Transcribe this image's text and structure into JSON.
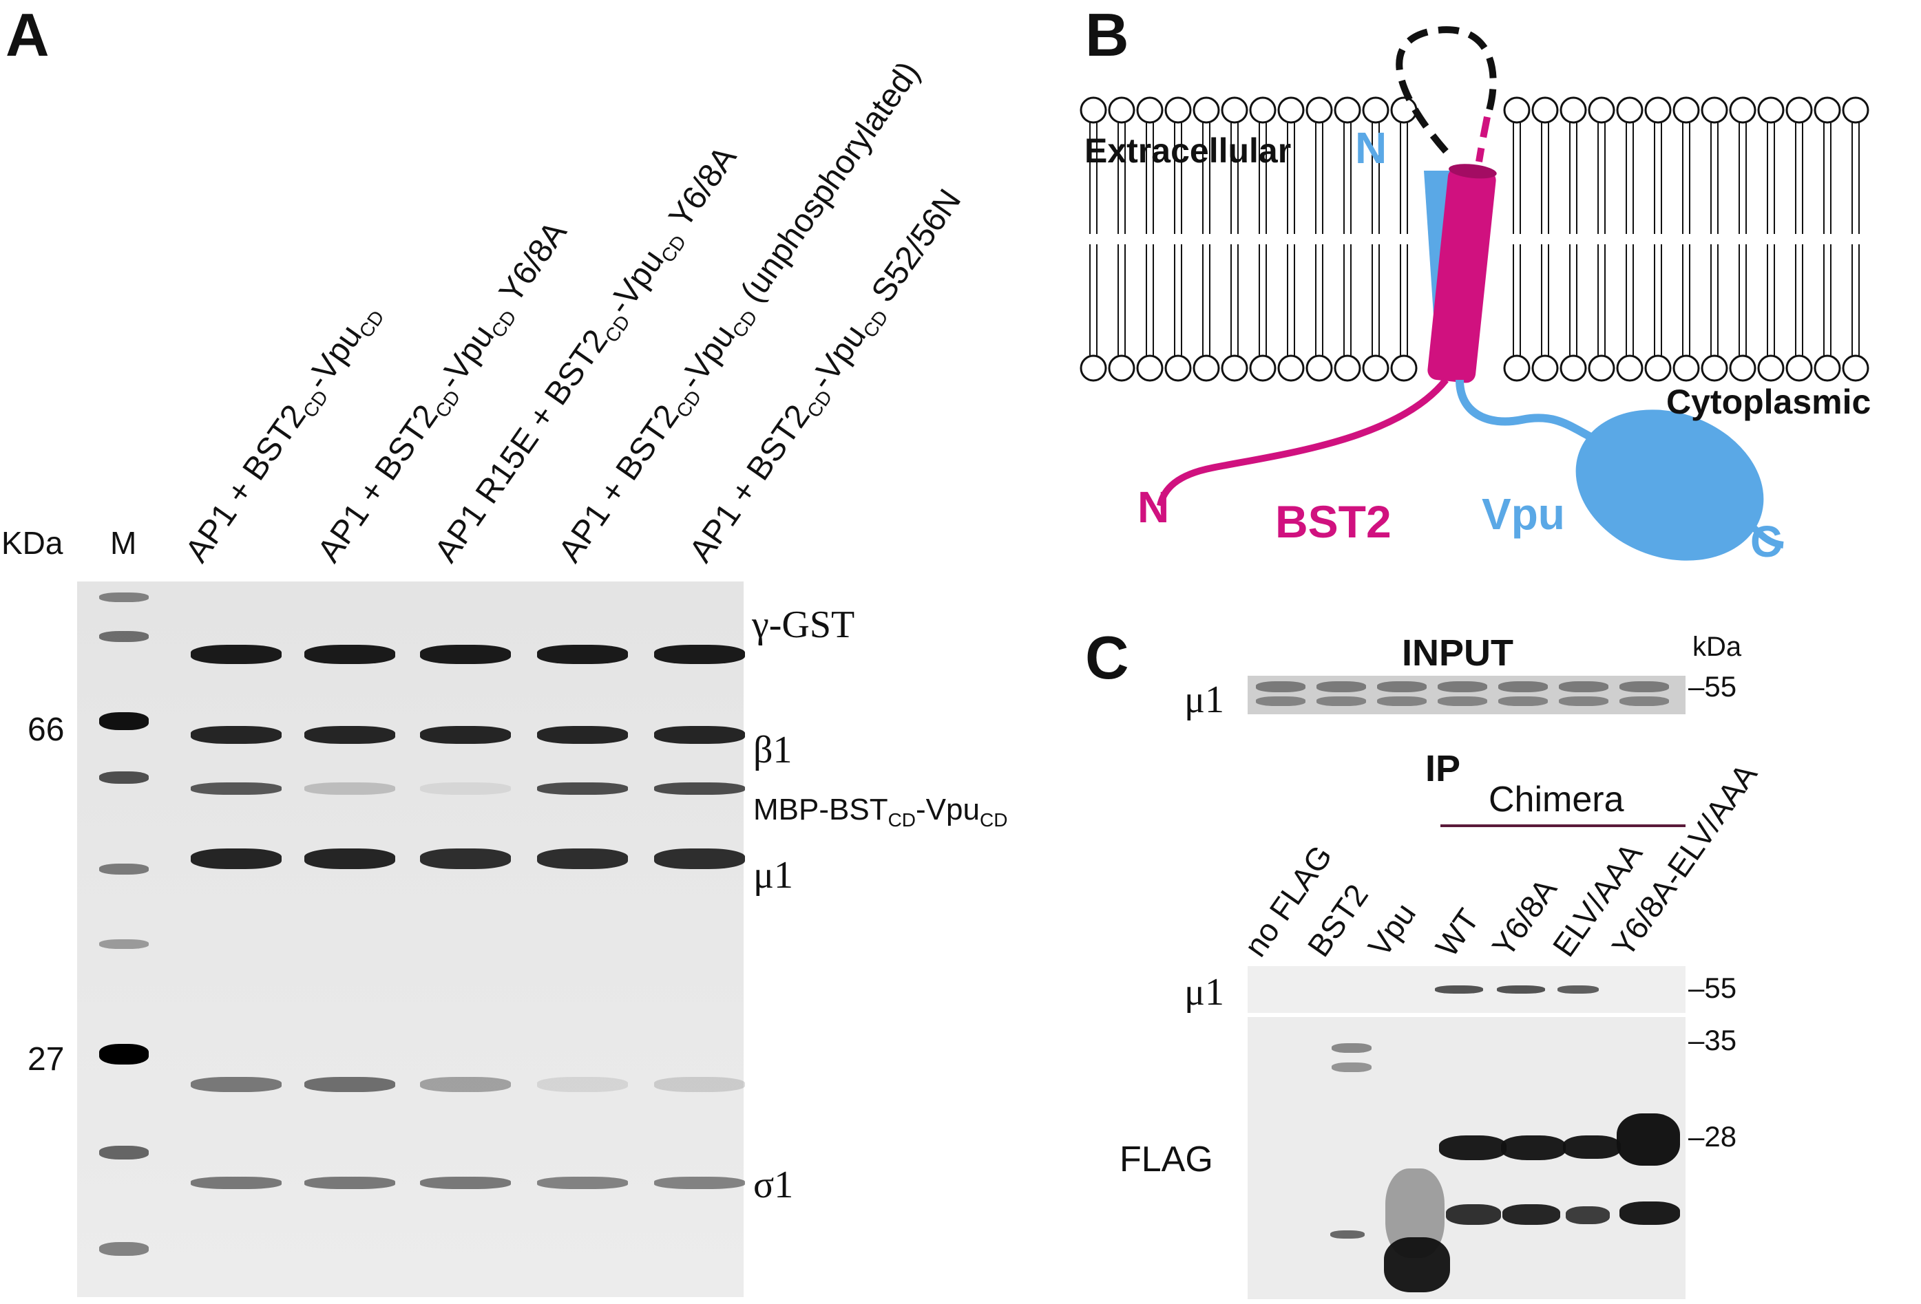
{
  "panels": {
    "a": "A",
    "b": "B",
    "c": "C"
  },
  "panelA": {
    "kda_label": "KDa",
    "marker_label": "M",
    "lanes": [
      {
        "main": "AP1 + BST2",
        "sub1": "CD",
        "mid": "-Vpu",
        "sub2": "CD",
        "suffix": ""
      },
      {
        "main": "AP1 + BST2",
        "sub1": "CD",
        "mid": "-Vpu",
        "sub2": "CD",
        "suffix": " Y6/8A"
      },
      {
        "main": "AP1 R15E + BST2",
        "sub1": "CD",
        "mid": "-Vpu",
        "sub2": "CD",
        "suffix": " Y6/8A"
      },
      {
        "main": "AP1 + BST2",
        "sub1": "CD",
        "mid": "-Vpu",
        "sub2": "CD",
        "suffix": " (unphosphorylated)"
      },
      {
        "main": "AP1 + BST2",
        "sub1": "CD",
        "mid": "-Vpu",
        "sub2": "CD",
        "suffix": " S52/56N"
      }
    ],
    "mw_markers": [
      "66",
      "27"
    ],
    "band_labels": {
      "gamma": "γ-GST",
      "beta": "β1",
      "mbp_main": "MBP-BST",
      "mbp_sub1": "CD",
      "mbp_mid": "-Vpu",
      "mbp_sub2": "CD",
      "mu": "μ1",
      "sigma": "σ1"
    }
  },
  "panelB": {
    "extracellular": "Extracellular",
    "cytoplasmic": "Cytoplasmic",
    "n_vpu": "N",
    "n_bst2": "N",
    "bst2": "BST2",
    "vpu": "Vpu",
    "c_vpu": "C",
    "colors": {
      "bst2": "#d0117f",
      "vpu": "#5aa8e6"
    }
  },
  "panelC": {
    "input_title": "INPUT",
    "kda_unit": "kDa",
    "input_row_label": "μ1",
    "input_marker": "–55",
    "ip_label": "IP",
    "chimera_label": "Chimera",
    "lanes": [
      "no FLAG",
      "BST2",
      "Vpu",
      "WT",
      "Y6/8A",
      "ELV/AAA",
      "Y6/8A-ELV/AAA"
    ],
    "ip_row_label": "μ1",
    "ip_marker": "–55",
    "flag_label": "FLAG",
    "flag_markers": [
      "–35",
      "–28"
    ]
  }
}
